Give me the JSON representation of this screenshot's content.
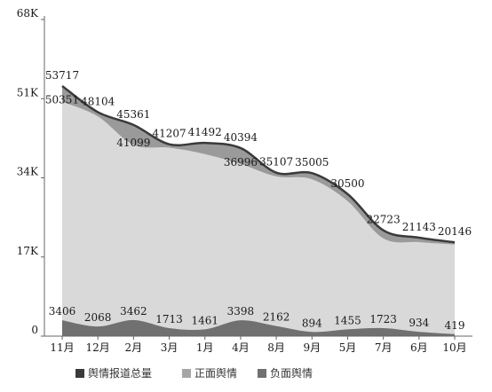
{
  "chart_data": {
    "type": "area",
    "categories": [
      "11月",
      "12月",
      "2月",
      "3月",
      "1月",
      "4月",
      "8月",
      "9月",
      "5月",
      "7月",
      "6月",
      "10月"
    ],
    "ylim": [
      0,
      68000
    ],
    "yticks": [
      {
        "value": 0,
        "label": "0"
      },
      {
        "value": 17000,
        "label": "17K"
      },
      {
        "value": 34000,
        "label": "34K"
      },
      {
        "value": 51000,
        "label": "51K"
      },
      {
        "value": 68000,
        "label": "68K"
      }
    ],
    "grid": false,
    "legend_position": "bottom",
    "series": [
      {
        "name": "舆情报道总量",
        "color": "#3a3a3a",
        "values": [
          53717,
          48104,
          45361,
          41207,
          41492,
          40394,
          35107,
          35005,
          30500,
          22723,
          21143,
          20146
        ]
      },
      {
        "name": "正面舆情",
        "color": "#d9d9d9",
        "values": [
          50351,
          47200,
          41099,
          40500,
          39100,
          36996,
          34300,
          33700,
          29000,
          21000,
          20200,
          19700
        ]
      },
      {
        "name": "负面舆情",
        "color": "#707070",
        "values": [
          3406,
          2068,
          3462,
          1713,
          1461,
          3398,
          2162,
          894,
          1455,
          1723,
          934,
          419
        ]
      }
    ],
    "data_labels": {
      "total": [
        "53717",
        "48104",
        "45361",
        "41207",
        "41492",
        "40394",
        "35107",
        "35005",
        "30500",
        "22723",
        "21143",
        "20146"
      ],
      "positive": [
        "50351",
        "",
        "41099",
        "",
        "",
        "36996",
        "",
        "",
        "",
        "",
        "",
        ""
      ],
      "negative": [
        "3406",
        "2068",
        "3462",
        "1713",
        "1461",
        "3398",
        "2162",
        "894",
        "1455",
        "1723",
        "934",
        "419"
      ]
    },
    "legend": [
      {
        "label": "舆情报道总量",
        "color": "#3a3a3a"
      },
      {
        "label": "正面舆情",
        "color": "#a6a6a6"
      },
      {
        "label": "负面舆情",
        "color": "#707070"
      }
    ]
  }
}
